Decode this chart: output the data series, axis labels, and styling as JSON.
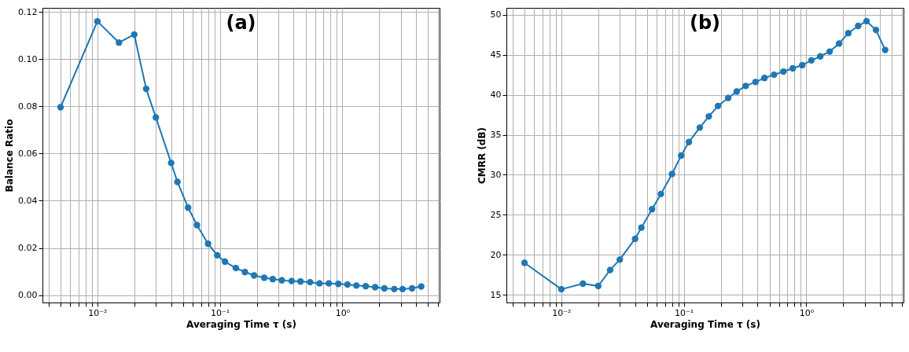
{
  "chart_data": [
    {
      "type": "line",
      "xlabel": "Averaging Time τ (s)",
      "ylabel": "Balance Ratio",
      "annotations": [
        "(a)"
      ],
      "log": "x",
      "grid": true,
      "marker": "circle",
      "line_style": "solid",
      "x": [
        0.005,
        0.01,
        0.015,
        0.02,
        0.025,
        0.03,
        0.04,
        0.045,
        0.055,
        0.065,
        0.08,
        0.095,
        0.11,
        0.135,
        0.16,
        0.19,
        0.23,
        0.27,
        0.32,
        0.385,
        0.455,
        0.545,
        0.65,
        0.775,
        0.925,
        1.1,
        1.3,
        1.55,
        1.85,
        2.2,
        2.65,
        3.1,
        3.7,
        4.4
      ],
      "series": [
        {
          "color": "#1f77b4",
          "values": [
            0.0796,
            0.116,
            0.107,
            0.1104,
            0.0874,
            0.0753,
            0.056,
            0.048,
            0.0371,
            0.0297,
            0.0218,
            0.0169,
            0.0142,
            0.0115,
            0.0098,
            0.0084,
            0.0074,
            0.0068,
            0.0063,
            0.006,
            0.0058,
            0.0055,
            0.005,
            0.005,
            0.0048,
            0.0045,
            0.0041,
            0.0038,
            0.0034,
            0.0029,
            0.0026,
            0.0026,
            0.0029,
            0.0037
          ]
        }
      ],
      "xlim": [
        0.00356,
        6.21
      ],
      "ylim": [
        -0.0031,
        0.1217
      ],
      "xticks": [
        {
          "value": 0.004,
          "label": null
        },
        {
          "value": 0.005,
          "label": null
        },
        {
          "value": 0.006,
          "label": null
        },
        {
          "value": 0.007,
          "label": null
        },
        {
          "value": 0.008,
          "label": null
        },
        {
          "value": 0.009,
          "label": null
        },
        {
          "value": 0.01,
          "label": "10⁻²"
        },
        {
          "value": 0.02,
          "label": null
        },
        {
          "value": 0.03,
          "label": null
        },
        {
          "value": 0.04,
          "label": null
        },
        {
          "value": 0.05,
          "label": null
        },
        {
          "value": 0.06,
          "label": null
        },
        {
          "value": 0.07,
          "label": null
        },
        {
          "value": 0.08,
          "label": null
        },
        {
          "value": 0.09,
          "label": null
        },
        {
          "value": 0.1,
          "label": "10⁻¹"
        },
        {
          "value": 0.2,
          "label": null
        },
        {
          "value": 0.3,
          "label": null
        },
        {
          "value": 0.4,
          "label": null
        },
        {
          "value": 0.5,
          "label": null
        },
        {
          "value": 0.6,
          "label": null
        },
        {
          "value": 0.7,
          "label": null
        },
        {
          "value": 0.8,
          "label": null
        },
        {
          "value": 0.9,
          "label": null
        },
        {
          "value": 1,
          "label": "10⁰"
        },
        {
          "value": 2,
          "label": null
        },
        {
          "value": 3,
          "label": null
        },
        {
          "value": 4,
          "label": null
        },
        {
          "value": 5,
          "label": null
        },
        {
          "value": 6,
          "label": null
        }
      ],
      "yticks": [
        {
          "value": 0,
          "label": "0.00"
        },
        {
          "value": 0.02,
          "label": "0.02"
        },
        {
          "value": 0.04,
          "label": "0.04"
        },
        {
          "value": 0.06,
          "label": "0.06"
        },
        {
          "value": 0.08,
          "label": "0.08"
        },
        {
          "value": 0.1,
          "label": "0.10"
        },
        {
          "value": 0.12,
          "label": "0.12"
        }
      ]
    },
    {
      "type": "line",
      "xlabel": "Averaging Time τ (s)",
      "ylabel": "CMRR (dB)",
      "annotations": [
        "(b)"
      ],
      "log": "x",
      "grid": true,
      "marker": "circle",
      "line_style": "solid",
      "x": [
        0.005,
        0.01,
        0.015,
        0.02,
        0.025,
        0.03,
        0.04,
        0.045,
        0.055,
        0.065,
        0.08,
        0.095,
        0.11,
        0.135,
        0.16,
        0.19,
        0.23,
        0.27,
        0.32,
        0.385,
        0.455,
        0.545,
        0.65,
        0.775,
        0.925,
        1.1,
        1.3,
        1.55,
        1.85,
        2.2,
        2.65,
        3.1,
        3.7,
        4.4
      ],
      "series": [
        {
          "color": "#1f77b4",
          "values": [
            19.0,
            15.7,
            16.4,
            16.1,
            18.1,
            19.4,
            22.0,
            23.4,
            25.7,
            27.6,
            30.1,
            32.4,
            34.1,
            35.9,
            37.3,
            38.6,
            39.6,
            40.4,
            41.1,
            41.6,
            42.1,
            42.5,
            42.9,
            43.3,
            43.7,
            44.3,
            44.8,
            45.4,
            46.4,
            47.7,
            48.6,
            49.2,
            48.1,
            45.6
          ]
        }
      ],
      "xlim": [
        0.00356,
        6.21
      ],
      "ylim": [
        14.04,
        50.86
      ],
      "xticks": [
        {
          "value": 0.004,
          "label": null
        },
        {
          "value": 0.005,
          "label": null
        },
        {
          "value": 0.006,
          "label": null
        },
        {
          "value": 0.007,
          "label": null
        },
        {
          "value": 0.008,
          "label": null
        },
        {
          "value": 0.009,
          "label": null
        },
        {
          "value": 0.01,
          "label": "10⁻²"
        },
        {
          "value": 0.02,
          "label": null
        },
        {
          "value": 0.03,
          "label": null
        },
        {
          "value": 0.04,
          "label": null
        },
        {
          "value": 0.05,
          "label": null
        },
        {
          "value": 0.06,
          "label": null
        },
        {
          "value": 0.07,
          "label": null
        },
        {
          "value": 0.08,
          "label": null
        },
        {
          "value": 0.09,
          "label": null
        },
        {
          "value": 0.1,
          "label": "10⁻¹"
        },
        {
          "value": 0.2,
          "label": null
        },
        {
          "value": 0.3,
          "label": null
        },
        {
          "value": 0.4,
          "label": null
        },
        {
          "value": 0.5,
          "label": null
        },
        {
          "value": 0.6,
          "label": null
        },
        {
          "value": 0.7,
          "label": null
        },
        {
          "value": 0.8,
          "label": null
        },
        {
          "value": 0.9,
          "label": null
        },
        {
          "value": 1,
          "label": "10⁰"
        },
        {
          "value": 2,
          "label": null
        },
        {
          "value": 3,
          "label": null
        },
        {
          "value": 4,
          "label": null
        },
        {
          "value": 5,
          "label": null
        },
        {
          "value": 6,
          "label": null
        }
      ],
      "yticks": [
        15,
        20,
        25,
        30,
        35,
        40,
        45,
        50
      ]
    }
  ]
}
